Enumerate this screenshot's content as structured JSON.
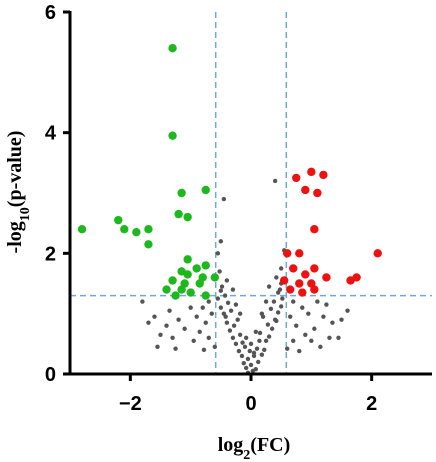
{
  "chart_data": {
    "type": "scatter",
    "title": "",
    "xlabel": {
      "base": "log",
      "sub": "2",
      "rest": "(FC)"
    },
    "ylabel": {
      "pre": "-log",
      "sub": "10",
      "rest": "(p-value)"
    },
    "xlim": [
      -3,
      3
    ],
    "ylim": [
      0,
      6
    ],
    "xticks": [
      -2,
      0,
      2
    ],
    "yticks": [
      0,
      2,
      4,
      6
    ],
    "grid": false,
    "thresholds": {
      "x": [
        -0.585,
        0.585
      ],
      "y": 1.3
    },
    "colors": {
      "down": "#1DB81D",
      "up": "#EE1111",
      "ns": "#555555",
      "threshold_line": "#6FA8DC",
      "axis": "#000000"
    },
    "series": [
      {
        "key": "down",
        "points": [
          [
            -2.8,
            2.4
          ],
          [
            -2.2,
            2.55
          ],
          [
            -2.1,
            2.4
          ],
          [
            -1.9,
            2.35
          ],
          [
            -1.7,
            2.4
          ],
          [
            -1.7,
            2.15
          ],
          [
            -1.3,
            5.4
          ],
          [
            -1.3,
            3.95
          ],
          [
            -1.15,
            3.0
          ],
          [
            -1.2,
            2.65
          ],
          [
            -1.05,
            2.6
          ],
          [
            -0.75,
            3.05
          ],
          [
            -1.05,
            1.9
          ],
          [
            -0.9,
            1.75
          ],
          [
            -0.75,
            1.8
          ],
          [
            -1.15,
            1.7
          ],
          [
            -1.05,
            1.65
          ],
          [
            -0.8,
            1.6
          ],
          [
            -0.6,
            1.6
          ],
          [
            -1.3,
            1.55
          ],
          [
            -1.1,
            1.5
          ],
          [
            -0.85,
            1.5
          ],
          [
            -1.4,
            1.4
          ],
          [
            -1.25,
            1.3
          ],
          [
            -1.15,
            1.4
          ],
          [
            -1.0,
            1.35
          ],
          [
            -0.75,
            1.3
          ]
        ]
      },
      {
        "key": "up",
        "points": [
          [
            0.75,
            3.25
          ],
          [
            1.0,
            3.35
          ],
          [
            1.2,
            3.3
          ],
          [
            0.9,
            3.05
          ],
          [
            1.1,
            3.0
          ],
          [
            1.05,
            2.4
          ],
          [
            2.1,
            2.0
          ],
          [
            0.6,
            2.0
          ],
          [
            0.8,
            2.0
          ],
          [
            1.05,
            1.75
          ],
          [
            0.7,
            1.75
          ],
          [
            0.9,
            1.65
          ],
          [
            0.55,
            1.55
          ],
          [
            0.8,
            1.5
          ],
          [
            1.25,
            1.6
          ],
          [
            1.65,
            1.55
          ],
          [
            1.75,
            1.6
          ],
          [
            0.65,
            1.4
          ],
          [
            1.0,
            1.5
          ],
          [
            0.85,
            1.35
          ],
          [
            1.05,
            1.4
          ]
        ]
      },
      {
        "key": "ns",
        "points": [
          [
            -0.05,
            0.02
          ],
          [
            0.03,
            0.05
          ],
          [
            -0.08,
            0.1
          ],
          [
            0.08,
            0.08
          ],
          [
            0.0,
            0.15
          ],
          [
            -0.12,
            0.18
          ],
          [
            0.12,
            0.2
          ],
          [
            -0.05,
            0.25
          ],
          [
            0.05,
            0.3
          ],
          [
            -0.15,
            0.3
          ],
          [
            0.18,
            0.32
          ],
          [
            -0.2,
            0.38
          ],
          [
            0.22,
            0.4
          ],
          [
            0.1,
            0.42
          ],
          [
            -0.1,
            0.45
          ],
          [
            -0.25,
            0.5
          ],
          [
            0.25,
            0.55
          ],
          [
            0.0,
            0.5
          ],
          [
            -0.3,
            0.6
          ],
          [
            0.3,
            0.62
          ],
          [
            -0.18,
            0.65
          ],
          [
            0.15,
            0.68
          ],
          [
            -0.35,
            0.72
          ],
          [
            0.35,
            0.75
          ],
          [
            -0.28,
            0.8
          ],
          [
            0.28,
            0.82
          ],
          [
            -0.4,
            0.85
          ],
          [
            0.42,
            0.88
          ],
          [
            -0.22,
            0.9
          ],
          [
            0.2,
            0.95
          ],
          [
            -0.45,
            1.0
          ],
          [
            0.45,
            1.02
          ],
          [
            -0.33,
            1.05
          ],
          [
            0.33,
            1.08
          ],
          [
            -0.5,
            1.1
          ],
          [
            0.5,
            1.12
          ],
          [
            -0.38,
            1.18
          ],
          [
            0.38,
            1.2
          ],
          [
            -0.55,
            1.25
          ],
          [
            0.52,
            1.25
          ],
          [
            -0.43,
            1.3
          ],
          [
            0.45,
            1.35
          ],
          [
            -0.48,
            1.45
          ],
          [
            0.5,
            1.5
          ],
          [
            -0.4,
            1.55
          ],
          [
            0.42,
            1.6
          ],
          [
            -0.52,
            1.7
          ],
          [
            0.5,
            1.75
          ],
          [
            -0.55,
            2.0
          ],
          [
            0.55,
            2.05
          ],
          [
            -0.5,
            2.2
          ],
          [
            0.4,
            3.2
          ],
          [
            -0.45,
            2.9
          ],
          [
            0.3,
            1.45
          ],
          [
            -0.3,
            1.4
          ],
          [
            0.25,
            1.2
          ],
          [
            -0.25,
            1.15
          ],
          [
            0.18,
            1.0
          ],
          [
            -0.18,
            1.0
          ],
          [
            0.08,
            0.7
          ],
          [
            -0.08,
            0.6
          ],
          [
            0.4,
            0.9
          ],
          [
            -0.42,
            0.95
          ],
          [
            0.48,
            1.4
          ],
          [
            -0.5,
            1.38
          ],
          [
            0.14,
            0.55
          ],
          [
            -0.14,
            0.52
          ],
          [
            0.05,
            0.35
          ],
          [
            -0.02,
            0.38
          ],
          [
            -0.7,
            1.2
          ],
          [
            -0.8,
            1.1
          ],
          [
            -0.65,
            1.0
          ],
          [
            -0.9,
            0.95
          ],
          [
            -1.0,
            1.1
          ],
          [
            -0.75,
            0.85
          ],
          [
            -1.2,
            0.9
          ],
          [
            -1.1,
            0.75
          ],
          [
            -0.85,
            0.7
          ],
          [
            -1.4,
            0.8
          ],
          [
            -0.95,
            0.55
          ],
          [
            -0.7,
            0.6
          ],
          [
            -1.3,
            0.6
          ],
          [
            -1.6,
            0.95
          ],
          [
            -1.5,
            0.65
          ],
          [
            -1.8,
            1.2
          ],
          [
            -1.55,
            0.45
          ],
          [
            -1.25,
            0.42
          ],
          [
            -1.7,
            0.85
          ],
          [
            -1.35,
            1.05
          ],
          [
            -0.6,
            0.45
          ],
          [
            -0.78,
            0.4
          ],
          [
            0.7,
            1.2
          ],
          [
            0.85,
            1.1
          ],
          [
            0.65,
            0.95
          ],
          [
            0.95,
            1.0
          ],
          [
            1.1,
            1.2
          ],
          [
            0.75,
            0.8
          ],
          [
            1.2,
            0.95
          ],
          [
            1.05,
            0.75
          ],
          [
            0.9,
            0.65
          ],
          [
            1.35,
            0.85
          ],
          [
            1.0,
            0.55
          ],
          [
            0.7,
            0.55
          ],
          [
            1.3,
            0.6
          ],
          [
            1.5,
            0.9
          ],
          [
            1.45,
            0.6
          ],
          [
            1.15,
            0.45
          ],
          [
            1.6,
            1.05
          ],
          [
            0.6,
            0.42
          ],
          [
            0.8,
            0.38
          ],
          [
            1.25,
            1.15
          ]
        ]
      }
    ]
  }
}
